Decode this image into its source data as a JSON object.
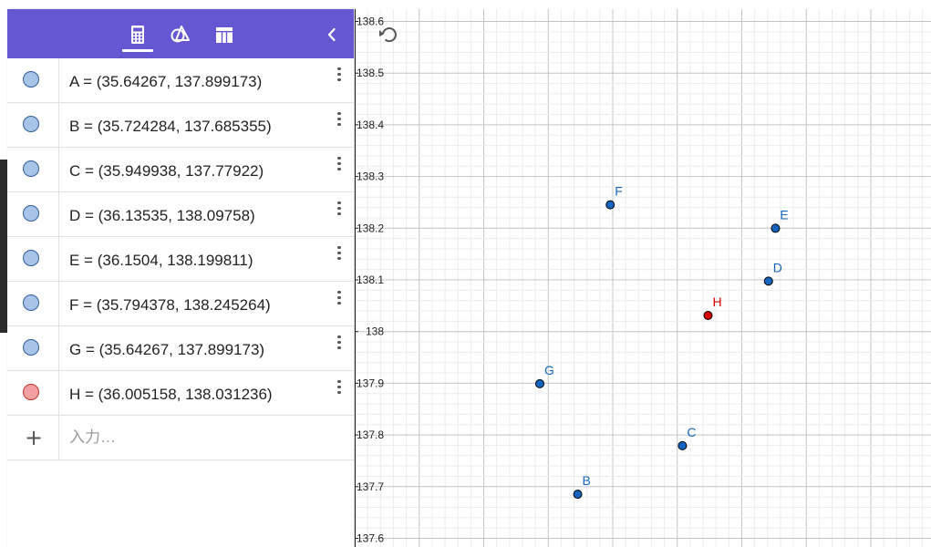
{
  "algebra": {
    "tabs": [
      {
        "name": "algebra-tab",
        "icon": "calculator-icon"
      },
      {
        "name": "tools-tab",
        "icon": "shapes-icon"
      },
      {
        "name": "table-tab",
        "icon": "table-icon"
      }
    ],
    "collapse_icon": "chevron-left-icon",
    "header_color": "#6557d2",
    "points": [
      {
        "label": "A",
        "text": "A = (35.64267, 137.899173)",
        "color": "blue"
      },
      {
        "label": "B",
        "text": "B = (35.724284, 137.685355)",
        "color": "blue"
      },
      {
        "label": "C",
        "text": "C = (35.949938, 137.77922)",
        "color": "blue"
      },
      {
        "label": "D",
        "text": "D = (36.13535, 138.09758)",
        "color": "blue"
      },
      {
        "label": "E",
        "text": "E = (36.1504, 138.199811)",
        "color": "blue"
      },
      {
        "label": "F",
        "text": "F = (35.794378, 138.245264)",
        "color": "blue"
      },
      {
        "label": "G",
        "text": "G = (35.64267, 137.899173)",
        "color": "blue"
      },
      {
        "label": "H",
        "text": "H = (36.005158, 138.031236)",
        "color": "red"
      }
    ],
    "input_placeholder": "入力…"
  },
  "graphics": {
    "undo_icon": "undo-icon",
    "y_ticks": [
      "138.6",
      "138.5",
      "138.4",
      "138.3",
      "138.2",
      "138.1",
      "138",
      "137.9",
      "137.8",
      "137.7",
      "137.6"
    ],
    "plot_points": [
      {
        "label": "B",
        "x": 35.724284,
        "y": 137.685355,
        "color": "#1565c0"
      },
      {
        "label": "C",
        "x": 35.949938,
        "y": 137.77922,
        "color": "#1565c0"
      },
      {
        "label": "D",
        "x": 36.13535,
        "y": 138.09758,
        "color": "#1565c0"
      },
      {
        "label": "E",
        "x": 36.1504,
        "y": 138.199811,
        "color": "#1565c0"
      },
      {
        "label": "F",
        "x": 35.794378,
        "y": 138.245264,
        "color": "#1565c0"
      },
      {
        "label": "G",
        "x": 35.64267,
        "y": 137.899173,
        "color": "#1565c0"
      },
      {
        "label": "H",
        "x": 36.005158,
        "y": 138.031236,
        "color": "#d50000"
      }
    ]
  }
}
